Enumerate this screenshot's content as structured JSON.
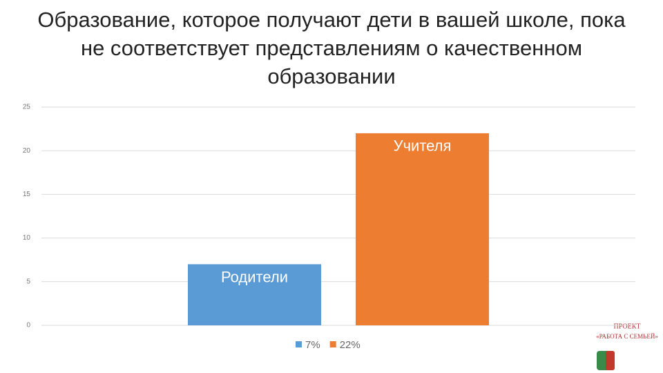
{
  "chart_data": {
    "type": "bar",
    "title": "Образование, которое получают дети в вашей школе, пока не соответствует представлениям о качественном образовании",
    "categories": [
      null
    ],
    "series": [
      {
        "name": "7%",
        "color": "#5b9bd5",
        "values": [
          7
        ],
        "label": "Родители"
      },
      {
        "name": "22%",
        "color": "#ed7d31",
        "values": [
          22
        ],
        "label": "Учителя"
      }
    ],
    "ylim": [
      0,
      25
    ],
    "yticks": [
      0,
      5,
      10,
      15,
      20,
      25
    ],
    "grid": true,
    "legend": "bottom"
  },
  "logo": {
    "line1": "ПРОЕКТ",
    "line2": "«РАБОТА С СЕМЬЕЙ»"
  }
}
